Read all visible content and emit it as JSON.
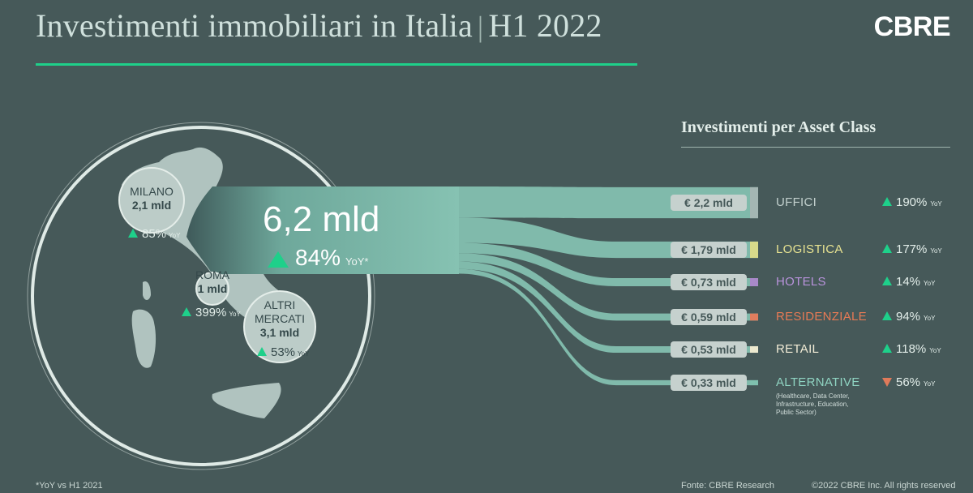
{
  "header": {
    "title_main": "Investimenti immobiliari in Italia",
    "title_sep": "|",
    "title_period": "H1 2022",
    "logo": "CBRE"
  },
  "total": {
    "value": "6,2 mld",
    "change": "84%",
    "change_label": "YoY*",
    "direction": "up"
  },
  "cities": [
    {
      "name": "MILANO",
      "value": "2,1 mld",
      "change": "85%",
      "yoy": "YoY",
      "direction": "up"
    },
    {
      "name": "ROMA",
      "value": "1 mld",
      "change": "399%",
      "yoy": "YoY",
      "direction": "up"
    },
    {
      "name": "ALTRI MERCATI",
      "value": "3,1 mld",
      "change": "53%",
      "yoy": "YoY",
      "direction": "up"
    }
  ],
  "section_title": "Investimenti  per Asset Class",
  "chart_data": {
    "type": "sankey",
    "source": {
      "name": "",
      "value": 6.2,
      "unit": "mld"
    },
    "categories": [
      "UFFICI",
      "LOGISTICA",
      "HOTELS",
      "RESIDENZIALE",
      "RETAIL",
      "ALTERNATIVE"
    ],
    "values": [
      2.2,
      1.79,
      0.73,
      0.59,
      0.53,
      0.33
    ],
    "value_labels": [
      "€ 2,2 mld",
      "€ 1,79 mld",
      "€ 0,73 mld",
      "€ 0,59 mld",
      "€ 0,53 mld",
      "€ 0,33 mld"
    ],
    "changes": [
      "190%",
      "177%",
      "14%",
      "94%",
      "118%",
      "56%"
    ],
    "change_directions": [
      "up",
      "up",
      "up",
      "up",
      "up",
      "down"
    ],
    "change_suffix": "YoY",
    "colors": [
      "#a4b6b3",
      "#d8da8a",
      "#a889c9",
      "#df7d5e",
      "#ece9cf",
      "#7fc0ae"
    ],
    "label_colors": [
      "#c2d0cd",
      "#e8e391",
      "#b993dc",
      "#e77a55",
      "#f2ecd6",
      "#8fd4c2"
    ]
  },
  "alternative_note": "(Healthcare, Data Center, Infrastructure, Education, Public Sector)",
  "footer": {
    "footnote": "*YoY vs H1 2021",
    "source": "Fonte: CBRE Research",
    "copyright": "©2022 CBRE Inc. All rights reserved"
  },
  "colors": {
    "background": "#465959",
    "accent": "#1ed08a",
    "down": "#e07a5a",
    "map_fill": "#b0c3bf"
  }
}
